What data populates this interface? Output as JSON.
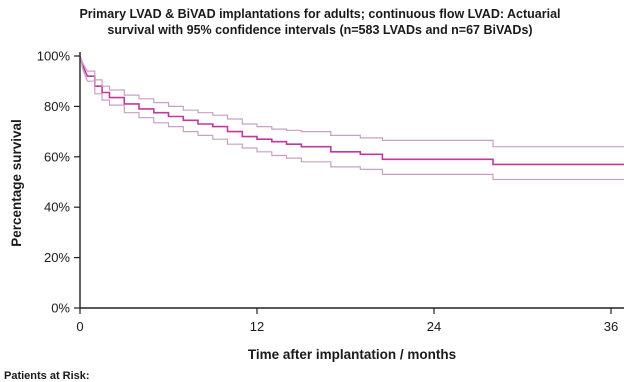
{
  "chart_data": {
    "type": "line",
    "title_line1": "Primary LVAD & BiVAD implantations for adults; continuous flow LVAD: Actuarial",
    "title_line2": "survival with 95% confidence intervals  (n=583 LVADs and n=67 BiVADs)",
    "xlabel": "Time after implantation / months",
    "ylabel": "Percentage survival",
    "xlim": [
      0,
      36
    ],
    "ylim": [
      0,
      100
    ],
    "x_ticks": [
      0,
      12,
      24,
      36
    ],
    "y_ticks": [
      0,
      20,
      40,
      60,
      80,
      100
    ],
    "y_tick_suffix": "%",
    "grid": false,
    "colors": {
      "estimate": "#c0399e",
      "ci": "#c9a0c4",
      "axis": "#222222"
    },
    "series": [
      {
        "role": "estimate",
        "x": [
          0,
          0.2,
          0.5,
          1,
          1.5,
          2,
          3,
          4,
          5,
          6,
          7,
          8,
          9,
          10,
          11,
          12,
          13,
          14,
          15,
          17,
          19,
          20.5,
          28,
          37
        ],
        "values": [
          100,
          96,
          92,
          88,
          85.5,
          83.5,
          81,
          79,
          77.5,
          76,
          74.5,
          73,
          72,
          70,
          68,
          67,
          66,
          65,
          64,
          62,
          61,
          59,
          57,
          57
        ]
      },
      {
        "role": "ci_upper",
        "x": [
          0,
          0.2,
          0.5,
          1,
          1.5,
          2,
          3,
          4,
          5,
          6,
          7,
          8,
          9,
          10,
          11,
          12,
          13,
          14,
          15,
          17,
          19,
          20.5,
          28,
          37
        ],
        "values": [
          100,
          97,
          94,
          90.5,
          88,
          86.5,
          84.5,
          83,
          81.5,
          80,
          78.5,
          77.5,
          76.5,
          75,
          73,
          72,
          71,
          70.5,
          70,
          68.5,
          67.5,
          66.5,
          64,
          64
        ]
      },
      {
        "role": "ci_lower",
        "x": [
          0,
          0.2,
          0.5,
          1,
          1.5,
          2,
          3,
          4,
          5,
          6,
          7,
          8,
          9,
          10,
          11,
          12,
          13,
          14,
          15,
          17,
          19,
          20.5,
          28,
          37
        ],
        "values": [
          100,
          94.5,
          90,
          85,
          82.5,
          80.5,
          77.5,
          75.5,
          73.5,
          72,
          70,
          68.5,
          67,
          65,
          63.5,
          62,
          60.5,
          59.5,
          58,
          56,
          55,
          53,
          51,
          51
        ]
      }
    ]
  },
  "footer": {
    "risk_label": "Patients at Risk:"
  }
}
